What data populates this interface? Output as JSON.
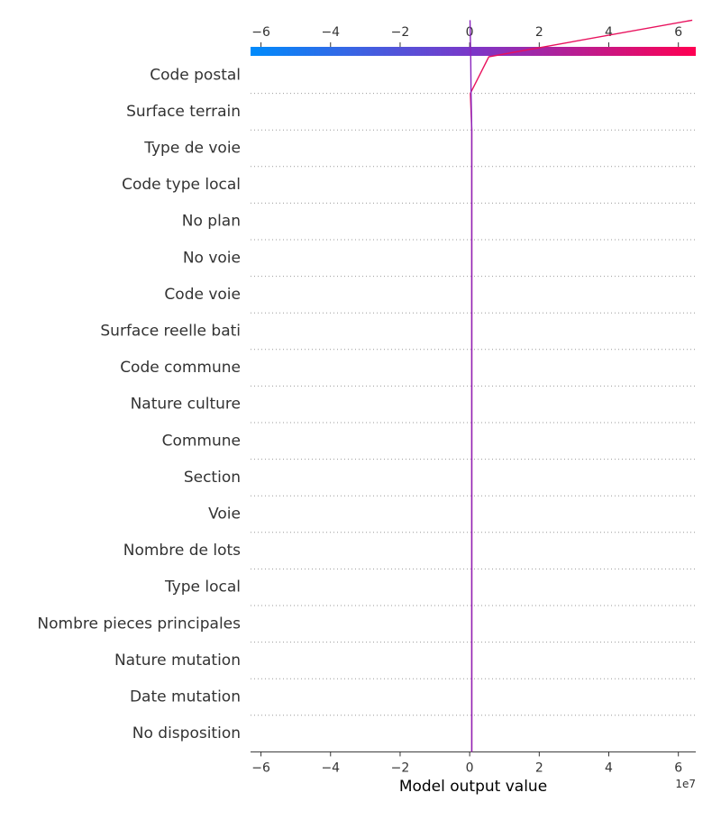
{
  "chart_data": {
    "type": "line",
    "title": "",
    "xlabel": "Model output value",
    "ylabel": "",
    "x_offset_label": "1e7",
    "xlim": [
      -6.3,
      6.5
    ],
    "xticks": [
      -6,
      -4,
      -2,
      0,
      2,
      4,
      6
    ],
    "xtick_labels": [
      "−6",
      "−4",
      "−2",
      "0",
      "2",
      "4",
      "6"
    ],
    "grid": "dotted horizontal",
    "colorbar": {
      "position": "top",
      "from_color": "#008bfb",
      "to_color": "#ff0052"
    },
    "features": [
      "Code postal",
      "Surface terrain",
      "Type de voie",
      "Code type local",
      "No plan",
      "No voie",
      "Code voie",
      "Surface reelle bati",
      "Code commune",
      "Nature culture",
      "Commune",
      "Section",
      "Voie",
      "Nombre de lots",
      "Type local",
      "Nombre pieces principales",
      "Nature mutation",
      "Date mutation",
      "No disposition"
    ],
    "series": [
      {
        "color": "#e8115d",
        "x": [
          0.06,
          0.06,
          0.06,
          0.06,
          0.06,
          0.06,
          0.06,
          0.06,
          0.06,
          0.06,
          0.06,
          0.06,
          0.06,
          0.06,
          0.06,
          0.06,
          0.06,
          0.06,
          0.02,
          0.55,
          6.4
        ]
      },
      {
        "color": "#8a25bd",
        "x": [
          0.06,
          0.06,
          0.06,
          0.06,
          0.06,
          0.06,
          0.06,
          0.06,
          0.06,
          0.06,
          0.06,
          0.06,
          0.06,
          0.06,
          0.06,
          0.06,
          0.06,
          0.06,
          0.04,
          0.03,
          0.01
        ]
      }
    ]
  }
}
